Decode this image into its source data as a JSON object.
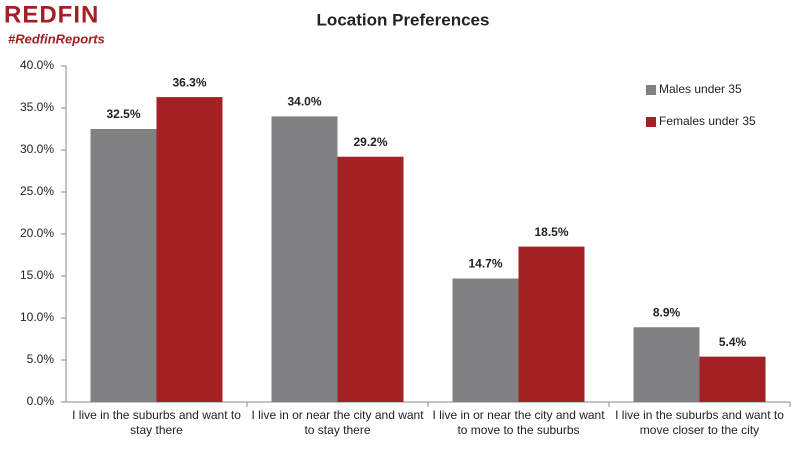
{
  "brand": {
    "logo": "REDFIN",
    "hashtag": "#RedfinReports"
  },
  "chart_data": {
    "type": "bar",
    "title": "Location Preferences",
    "categories": [
      "I live in the suburbs and want to stay there",
      "I live in or near the city and want to stay there",
      "I live in or near the city and want to move to the suburbs",
      "I live in the suburbs and want to move closer to the city"
    ],
    "series": [
      {
        "name": "Males under 35",
        "color": "#808083",
        "values": [
          32.5,
          34.0,
          14.7,
          8.9
        ],
        "value_labels": [
          "32.5%",
          "34.0%",
          "14.7%",
          "8.9%"
        ]
      },
      {
        "name": "Females under 35",
        "color": "#a32024",
        "values": [
          36.3,
          29.2,
          18.5,
          5.4
        ],
        "value_labels": [
          "36.3%",
          "29.2%",
          "18.5%",
          "5.4%"
        ]
      }
    ],
    "ylim": [
      0,
      40
    ],
    "yticks": [
      {
        "value": 0,
        "label": "0.0%"
      },
      {
        "value": 5,
        "label": "5.0%"
      },
      {
        "value": 10,
        "label": "10.0%"
      },
      {
        "value": 15,
        "label": "15.0%"
      },
      {
        "value": 20,
        "label": "20.0%"
      },
      {
        "value": 25,
        "label": "25.0%"
      },
      {
        "value": 30,
        "label": "30.0%"
      },
      {
        "value": 35,
        "label": "35.0%"
      },
      {
        "value": 40,
        "label": "40.0%"
      }
    ],
    "grid": false,
    "legend": "top-right"
  }
}
